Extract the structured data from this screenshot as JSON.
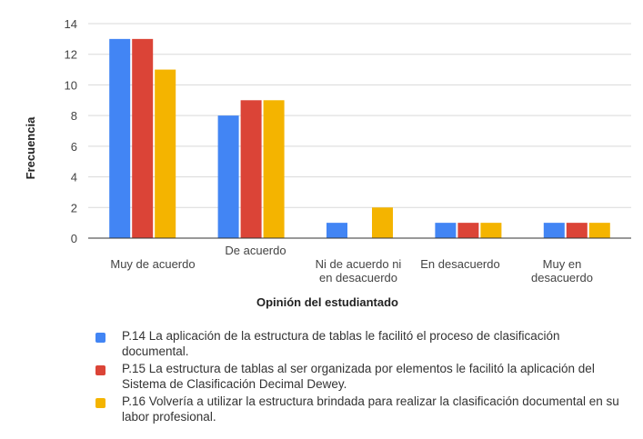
{
  "chart_data": {
    "type": "bar",
    "categories": [
      [
        "Muy de acuerdo"
      ],
      [
        "De acuerdo"
      ],
      [
        "Ni de acuerdo ni",
        "en desacuerdo"
      ],
      [
        "En desacuerdo"
      ],
      [
        "Muy en",
        "desacuerdo"
      ]
    ],
    "series": [
      {
        "name": "P.14 La aplicación de la estructura de tablas le facilitó el proceso de clasificación documental.",
        "color": "#4285F4",
        "values": [
          13,
          8,
          1,
          1,
          1
        ]
      },
      {
        "name": "P.15 La estructura de tablas al ser organizada por elementos le facilitó la aplicación del Sistema de Clasificación Decimal Dewey.",
        "color": "#DB4437",
        "values": [
          13,
          9,
          0,
          1,
          1
        ]
      },
      {
        "name": "P.16 Volvería a utilizar la estructura brindada para realizar la clasificación documental en su labor profesional.",
        "color": "#F4B400",
        "values": [
          11,
          9,
          2,
          1,
          1
        ]
      }
    ],
    "xlabel": "Opinión del estudiantado",
    "ylabel": "Frecuencia",
    "ylim": [
      0,
      14
    ],
    "yticks": [
      0,
      2,
      4,
      6,
      8,
      10,
      12,
      14
    ],
    "grid": true,
    "legend_position": "bottom"
  }
}
